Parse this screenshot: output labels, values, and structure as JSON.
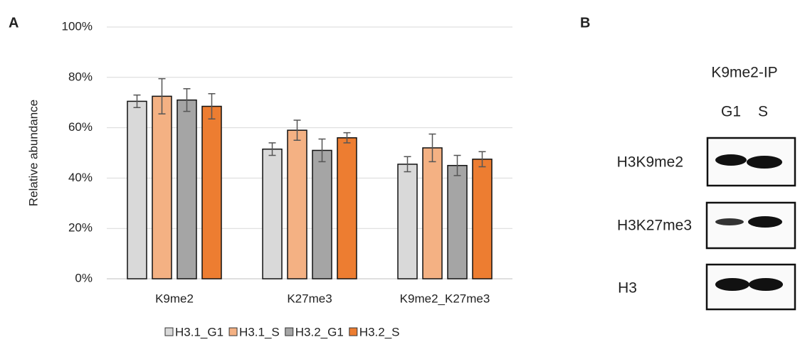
{
  "chart_data": {
    "type": "bar",
    "panel_label": "A",
    "ylabel": "Relative abundance",
    "categories": [
      "K9me2",
      "K27me3",
      "K9me2_K27me3"
    ],
    "series": [
      {
        "name": "H3.1_G1",
        "color": "#d9d9d9",
        "values": [
          70.5,
          51.5,
          45.5
        ],
        "errors": [
          2.5,
          2.5,
          3
        ]
      },
      {
        "name": "H3.1_S",
        "color": "#f4b183",
        "values": [
          72.5,
          59,
          52
        ],
        "errors": [
          7,
          4,
          5.5
        ]
      },
      {
        "name": "H3.2_G1",
        "color": "#a5a5a5",
        "values": [
          71,
          51,
          45
        ],
        "errors": [
          4.5,
          4.5,
          4
        ]
      },
      {
        "name": "H3.2_S",
        "color": "#ed7d31",
        "values": [
          68.5,
          56,
          47.5
        ],
        "errors": [
          5,
          2,
          3
        ]
      }
    ],
    "ylim": [
      0,
      100
    ],
    "yticks": [
      {
        "value": 0,
        "label": "0%"
      },
      {
        "value": 20,
        "label": "20%"
      },
      {
        "value": 40,
        "label": "40%"
      },
      {
        "value": 60,
        "label": "60%"
      },
      {
        "value": 80,
        "label": "80%"
      },
      {
        "value": 100,
        "label": "100%"
      }
    ],
    "grid": true,
    "legend": "bottom"
  },
  "panel_b": {
    "label": "B",
    "title": "K9me2-IP",
    "lanes": [
      "G1",
      "S"
    ],
    "rows": [
      "H3K9me2",
      "H3K27me3",
      "H3"
    ]
  }
}
